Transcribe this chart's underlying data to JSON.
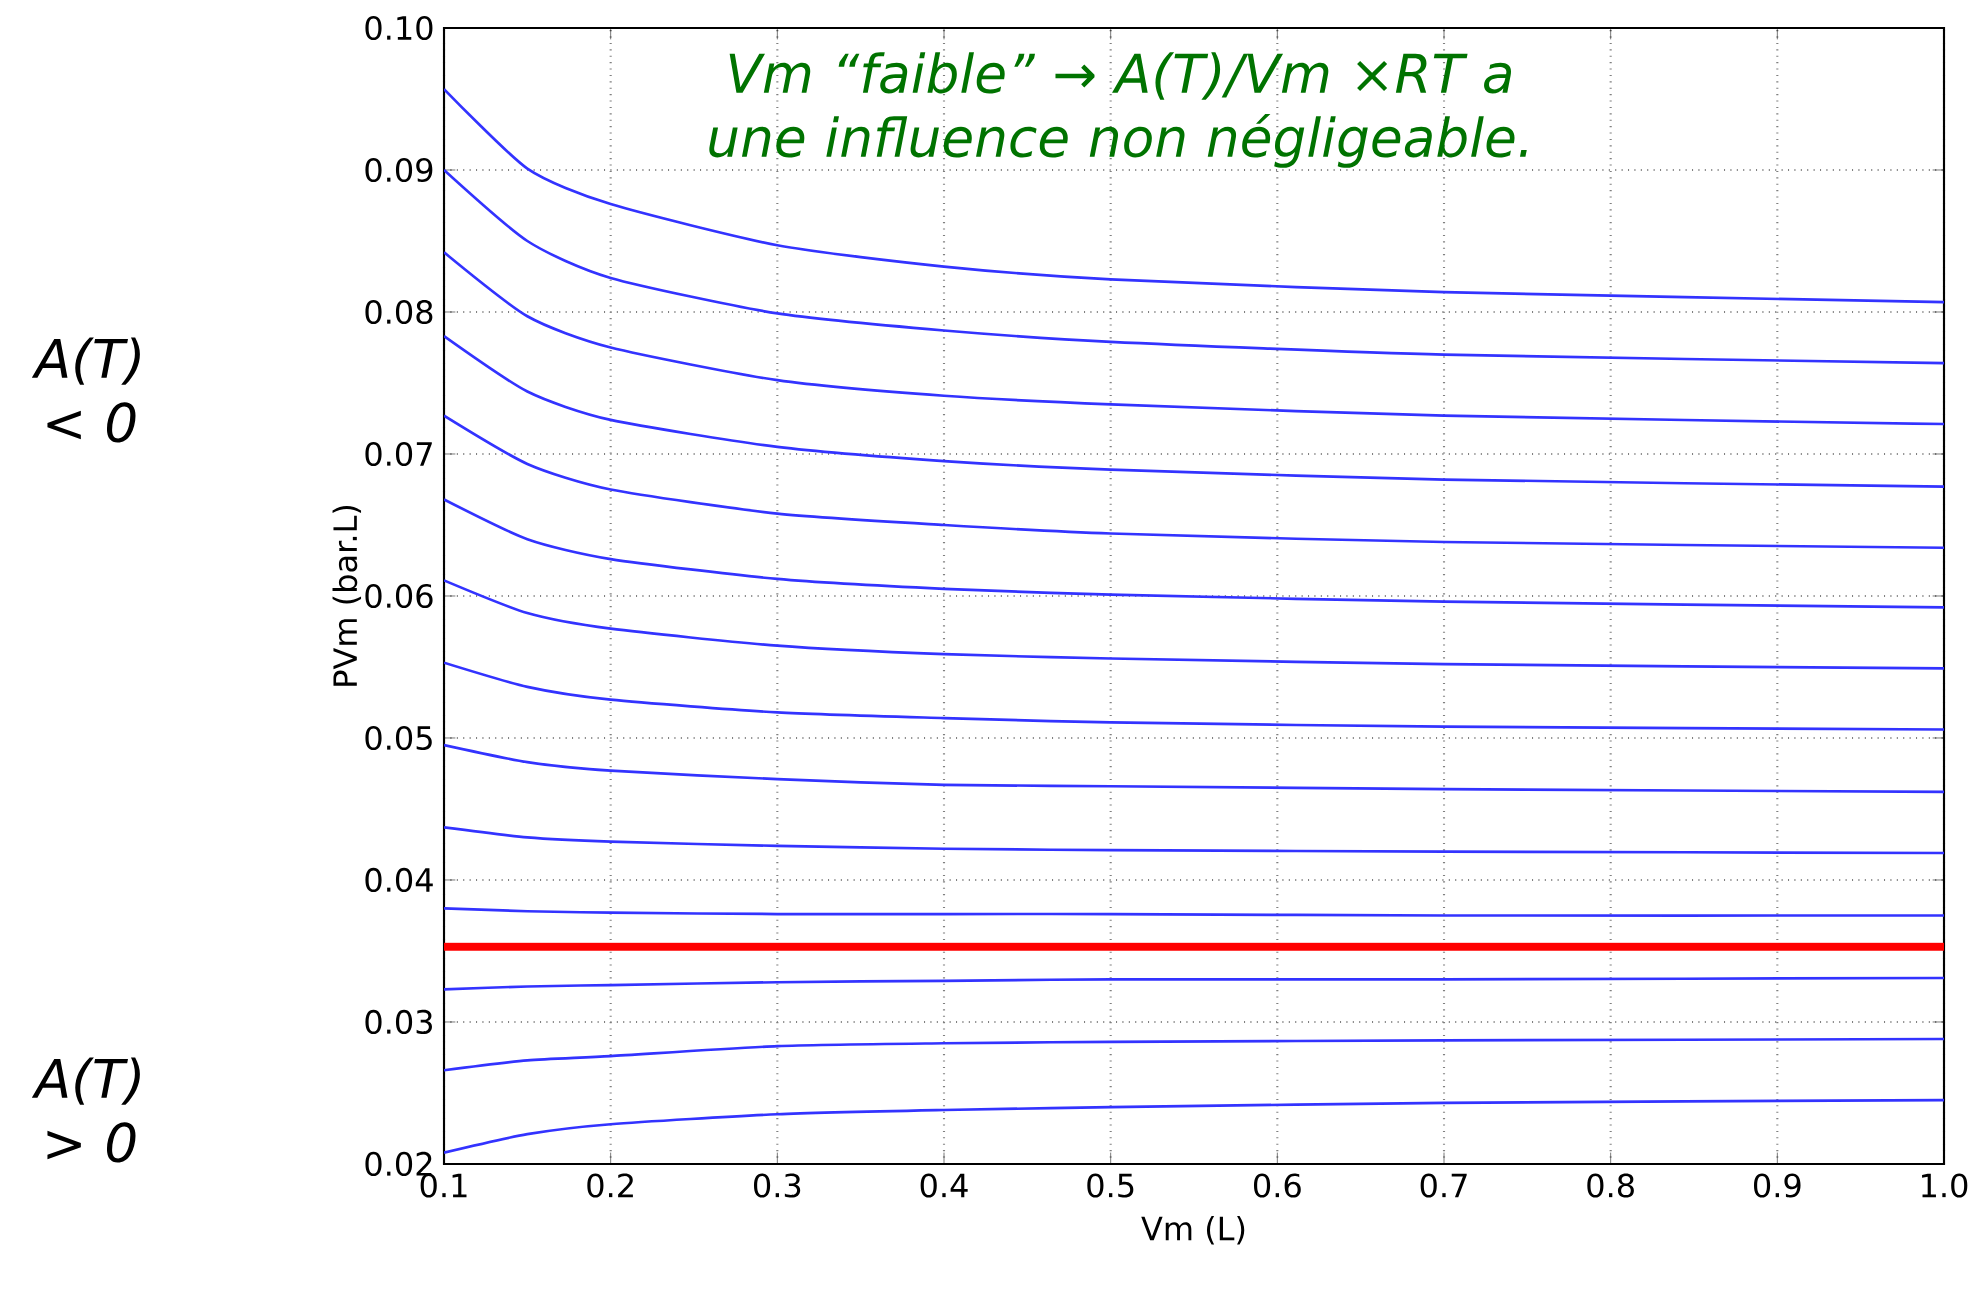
{
  "chart_data": {
    "type": "line",
    "xlabel": "Vm (L)",
    "ylabel": "PVm (bar.L)",
    "x": [
      0.1,
      0.15,
      0.2,
      0.3,
      0.4,
      0.5,
      0.7,
      1.0
    ],
    "xlim": [
      0.1,
      1.0
    ],
    "ylim": [
      0.02,
      0.1
    ],
    "xticks": [
      0.1,
      0.2,
      0.3,
      0.4,
      0.5,
      0.6,
      0.7,
      0.8,
      0.9,
      {
        "value": 1.0,
        "label": "1.0"
      }
    ],
    "yticks": [
      0.02,
      0.03,
      0.04,
      0.05,
      0.06,
      0.07,
      0.08,
      0.09,
      {
        "value": 0.1,
        "label": "0.10"
      }
    ],
    "grid": true,
    "marker": "none",
    "line_style": "solid",
    "series": [
      {
        "color": "#3333ff",
        "values": [
          0.0957,
          0.0901,
          0.0876,
          0.0847,
          0.0832,
          0.0823,
          0.0814,
          0.0807
        ]
      },
      {
        "color": "#3333ff",
        "values": [
          0.09,
          0.085,
          0.0824,
          0.0799,
          0.0787,
          0.0779,
          0.077,
          0.0764
        ]
      },
      {
        "color": "#3333ff",
        "values": [
          0.0842,
          0.0797,
          0.0775,
          0.0752,
          0.0741,
          0.0735,
          0.0727,
          0.0721
        ]
      },
      {
        "color": "#3333ff",
        "values": [
          0.0783,
          0.0744,
          0.0724,
          0.0705,
          0.0695,
          0.0689,
          0.0682,
          0.0677
        ]
      },
      {
        "color": "#3333ff",
        "values": [
          0.0727,
          0.0693,
          0.0675,
          0.0658,
          0.065,
          0.0644,
          0.0638,
          0.0634
        ]
      },
      {
        "color": "#3333ff",
        "values": [
          0.0668,
          0.064,
          0.0626,
          0.0612,
          0.0605,
          0.0601,
          0.0596,
          0.0592
        ]
      },
      {
        "color": "#3333ff",
        "values": [
          0.0611,
          0.0588,
          0.0577,
          0.0565,
          0.0559,
          0.0556,
          0.0552,
          0.0549
        ]
      },
      {
        "color": "#3333ff",
        "values": [
          0.0553,
          0.0536,
          0.0527,
          0.0518,
          0.0514,
          0.0511,
          0.0508,
          0.0506
        ]
      },
      {
        "color": "#3333ff",
        "values": [
          0.0495,
          0.0483,
          0.0477,
          0.0471,
          0.0467,
          0.0466,
          0.0464,
          0.0462
        ]
      },
      {
        "color": "#3333ff",
        "values": [
          0.0437,
          0.043,
          0.0427,
          0.0424,
          0.0422,
          0.0421,
          0.042,
          0.0419
        ]
      },
      {
        "color": "#3333ff",
        "values": [
          0.038,
          0.0378,
          0.0377,
          0.0376,
          0.0376,
          0.0376,
          0.0375,
          0.0375
        ]
      },
      {
        "color": "#ff0000",
        "values": [
          0.0353,
          0.0353,
          0.0353,
          0.0353,
          0.0353,
          0.0353,
          0.0353,
          0.0353
        ]
      },
      {
        "color": "#3333ff",
        "values": [
          0.0323,
          0.0325,
          0.0326,
          0.0328,
          0.0329,
          0.033,
          0.033,
          0.0331
        ]
      },
      {
        "color": "#3333ff",
        "values": [
          0.0266,
          0.0273,
          0.0276,
          0.0283,
          0.0285,
          0.0286,
          0.0287,
          0.0288
        ]
      },
      {
        "color": "#3333ff",
        "values": [
          0.0208,
          0.0221,
          0.0228,
          0.0235,
          0.0238,
          0.024,
          0.0243,
          0.0245
        ]
      }
    ],
    "annotations": [
      "Vm “faible” → A(T)/Vm ×RT a une influence non négligeable.",
      "A(T) < 0",
      "A(T) > 0"
    ]
  }
}
